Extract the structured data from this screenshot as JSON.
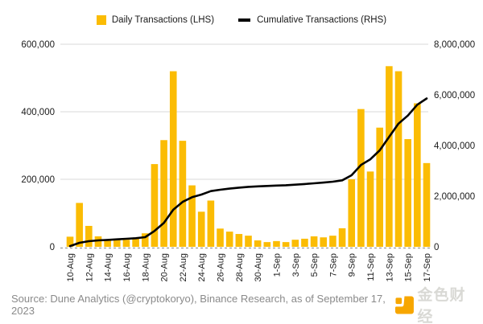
{
  "legend": {
    "daily_label": "Daily Transactions (LHS)",
    "cumulative_label": "Cumulative Transactions (RHS)"
  },
  "footer": {
    "source_text": "Source: Dune Analytics (@cryptokoryo), Binance Research, as of September 17, 2023",
    "brand_name": "金色财经"
  },
  "colors": {
    "bar": "#FBBC04",
    "line": "#000000",
    "grid": "#D9D9D9",
    "baseline": "#9a9a9a",
    "axis_text": "#1a1a1a",
    "source_text": "#8a8a8a",
    "brand_orange": "#F7A600",
    "background": "#FFFFFF"
  },
  "chart_data": {
    "type": "bar",
    "subtype": "combo bar + line, dual axis",
    "title": "",
    "xlabel": "",
    "ylabel_left": "Daily Transactions",
    "ylabel_right": "Cumulative Transactions",
    "grid": true,
    "legend_position": "top",
    "categories": [
      "10-Aug",
      "11-Aug",
      "12-Aug",
      "13-Aug",
      "14-Aug",
      "15-Aug",
      "16-Aug",
      "17-Aug",
      "18-Aug",
      "19-Aug",
      "20-Aug",
      "21-Aug",
      "22-Aug",
      "23-Aug",
      "24-Aug",
      "25-Aug",
      "26-Aug",
      "27-Aug",
      "28-Aug",
      "29-Aug",
      "30-Aug",
      "31-Aug",
      "1-Sep",
      "2-Sep",
      "3-Sep",
      "4-Sep",
      "5-Sep",
      "6-Sep",
      "7-Sep",
      "8-Sep",
      "9-Sep",
      "10-Sep",
      "11-Sep",
      "12-Sep",
      "13-Sep",
      "14-Sep",
      "15-Sep",
      "16-Sep",
      "17-Sep"
    ],
    "x_tick_labels": [
      "10-Aug",
      "12-Aug",
      "14-Aug",
      "16-Aug",
      "18-Aug",
      "20-Aug",
      "22-Aug",
      "24-Aug",
      "26-Aug",
      "28-Aug",
      "30-Aug",
      "1-Sep",
      "3-Sep",
      "5-Sep",
      "7-Sep",
      "9-Sep",
      "11-Sep",
      "13-Sep",
      "15-Sep",
      "17-Sep"
    ],
    "series": [
      {
        "name": "Daily Transactions (LHS)",
        "type": "bar",
        "axis": "left",
        "color": "#FBBC04",
        "values": [
          30000,
          130000,
          62000,
          31000,
          19000,
          24000,
          21000,
          24000,
          40000,
          245000,
          316000,
          520000,
          314000,
          182000,
          104000,
          137000,
          54000,
          45000,
          38000,
          33000,
          19000,
          14000,
          17000,
          14000,
          21000,
          24000,
          31000,
          28000,
          33000,
          55000,
          200000,
          408000,
          223000,
          353000,
          535000,
          520000,
          319000,
          425000,
          248000
        ]
      },
      {
        "name": "Cumulative Transactions (RHS)",
        "type": "line",
        "axis": "right",
        "color": "#000000",
        "values": [
          30000,
          160000,
          222000,
          253000,
          272000,
          296000,
          317000,
          341000,
          381000,
          626000,
          942000,
          1462000,
          1776000,
          1958000,
          2062000,
          2199000,
          2253000,
          2298000,
          2336000,
          2369000,
          2388000,
          2402000,
          2419000,
          2433000,
          2454000,
          2478000,
          2509000,
          2537000,
          2570000,
          2625000,
          2825000,
          3233000,
          3456000,
          3809000,
          4344000,
          4864000,
          5183000,
          5608000,
          5856000
        ]
      }
    ],
    "left_axis": {
      "min": 0,
      "max": 600000,
      "tick_labels": [
        "0",
        "200,000",
        "400,000",
        "600,000"
      ]
    },
    "right_axis": {
      "min": 0,
      "max": 8000000,
      "tick_labels": [
        "0",
        "2,000,000",
        "4,000,000",
        "6,000,000",
        "8,000,000"
      ]
    }
  }
}
